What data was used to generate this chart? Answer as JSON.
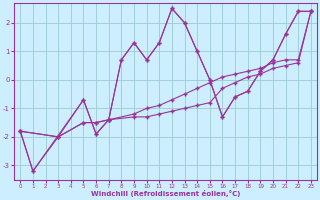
{
  "xlabel": "Windchill (Refroidissement éolien,°C)",
  "xlim": [
    -0.5,
    23.5
  ],
  "ylim": [
    -3.5,
    2.7
  ],
  "xticks": [
    0,
    1,
    2,
    3,
    4,
    5,
    6,
    7,
    8,
    9,
    10,
    11,
    12,
    13,
    14,
    15,
    16,
    17,
    18,
    19,
    20,
    21,
    22,
    23
  ],
  "yticks": [
    -3,
    -2,
    -1,
    0,
    1,
    2
  ],
  "background_color": "#cceeff",
  "line_color": "#993399",
  "grid_color": "#99cccc",
  "series": [
    {
      "x": [
        0,
        1,
        3,
        5,
        6,
        7,
        8,
        9,
        10,
        11,
        12,
        13,
        14,
        15,
        16,
        17,
        18,
        19,
        20,
        21,
        22,
        23
      ],
      "y": [
        -1.8,
        -3.2,
        -2.0,
        -0.7,
        -1.9,
        -1.4,
        0.7,
        1.3,
        0.7,
        1.3,
        2.5,
        2.0,
        1.0,
        0.0,
        -1.3,
        -0.6,
        -0.4,
        0.3,
        0.7,
        1.6,
        2.4,
        2.4
      ]
    },
    {
      "x": [
        0,
        3,
        5,
        6,
        7,
        9,
        10,
        11,
        12,
        13,
        14,
        15,
        16,
        17,
        18,
        19,
        20,
        21,
        22,
        23
      ],
      "y": [
        -1.8,
        -2.0,
        -1.5,
        -1.5,
        -1.4,
        -1.3,
        -1.3,
        -1.2,
        -1.1,
        -1.0,
        -0.9,
        -0.8,
        -0.3,
        -0.1,
        0.1,
        0.2,
        0.4,
        0.5,
        0.6,
        2.4
      ]
    },
    {
      "x": [
        0,
        3,
        5,
        6,
        7,
        9,
        10,
        11,
        12,
        13,
        14,
        15,
        16,
        17,
        18,
        19,
        20,
        21,
        22,
        23
      ],
      "y": [
        -1.8,
        -2.0,
        -1.5,
        -1.5,
        -1.4,
        -1.2,
        -1.0,
        -0.9,
        -0.7,
        -0.5,
        -0.3,
        -0.1,
        0.1,
        0.2,
        0.3,
        0.4,
        0.6,
        0.7,
        0.7,
        2.4
      ]
    },
    {
      "x": [
        0,
        1,
        5,
        6,
        7,
        8,
        9,
        10,
        11,
        12,
        13,
        14,
        15,
        16,
        17,
        18,
        19,
        20,
        21,
        22,
        23
      ],
      "y": [
        -1.8,
        -3.2,
        -0.7,
        -1.9,
        -1.4,
        0.7,
        1.3,
        0.7,
        1.3,
        2.5,
        2.0,
        1.0,
        0.0,
        -1.3,
        -0.6,
        -0.4,
        0.3,
        0.7,
        1.6,
        2.4,
        2.4
      ]
    }
  ]
}
